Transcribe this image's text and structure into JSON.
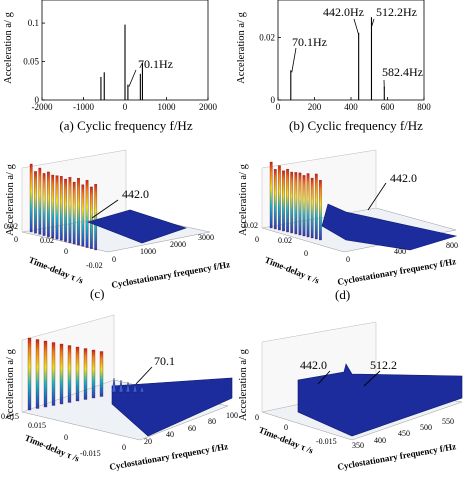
{
  "figure": {
    "top_ylabel": "Acceleration a/ g",
    "z_label": "Acceleration a/ g",
    "time_delay_label": "Time-delay  τ /s",
    "cyclo_label": "Cyclostationary frequency f/Hz"
  },
  "chart_data": [
    {
      "id": "a",
      "type": "bar",
      "caption": "(a)  Cyclic frequency f/Hz",
      "xlim": [
        -2000,
        2000
      ],
      "ylim": [
        0,
        0.13
      ],
      "xticks": [
        "-2000",
        "-1000",
        "0",
        "1000",
        "2000"
      ],
      "yticks": [
        "0",
        "0.05",
        "0.1"
      ],
      "ytick_values": [
        0,
        0.05,
        0.1
      ],
      "x": [
        -580,
        -500,
        0,
        70.1,
        370,
        420
      ],
      "values": [
        0.03,
        0.036,
        0.098,
        0.02,
        0.034,
        0.048
      ],
      "annotations": [
        {
          "text": "70.1Hz",
          "x": 70.1
        }
      ]
    },
    {
      "id": "b",
      "type": "bar",
      "caption": "(b)  Cyclic frequency f/Hz",
      "xlim": [
        0,
        800
      ],
      "ylim": [
        0,
        0.032
      ],
      "xticks": [
        "0",
        "200",
        "400",
        "600",
        "800"
      ],
      "yticks": [
        "0",
        "0.02"
      ],
      "ytick_values": [
        0,
        0.02
      ],
      "x": [
        70.1,
        442.0,
        512.2,
        582.4
      ],
      "values": [
        0.0095,
        0.0215,
        0.0265,
        0.0042
      ],
      "annotations": [
        {
          "text": "70.1Hz",
          "x": 70.1
        },
        {
          "text": "442.0Hz",
          "x": 442.0
        },
        {
          "text": "512.2Hz",
          "x": 512.2
        },
        {
          "text": "582.4Hz",
          "x": 582.4
        }
      ]
    },
    {
      "id": "c",
      "type": "surface",
      "caption": "(c)",
      "annotation": "442.0",
      "z_ticks": [
        "0.02",
        "0"
      ],
      "tau_ticks": [
        "0.02",
        "0",
        "-0.02"
      ],
      "f_ticks": [
        "0",
        "1000",
        "2000",
        "3000"
      ]
    },
    {
      "id": "d",
      "type": "surface",
      "caption": "(d)",
      "annotation": "442.0",
      "z_ticks": [
        "0.02",
        "0"
      ],
      "tau_ticks": [
        "0.02",
        "0"
      ],
      "f_ticks": [
        "0",
        "400",
        "800"
      ]
    },
    {
      "id": "e",
      "type": "surface",
      "annotation": "70.1",
      "z_ticks": [
        "0.015"
      ],
      "tau_ticks": [
        "0.015",
        "0",
        "-0.015"
      ],
      "f_ticks": [
        "0",
        "20",
        "40",
        "60",
        "80",
        "100"
      ]
    },
    {
      "id": "f",
      "type": "surface",
      "annotations": [
        "442.0",
        "512.2"
      ],
      "z_ticks": [
        "0"
      ],
      "tau_ticks": [
        "-0.015",
        "0"
      ],
      "f_ticks": [
        "350",
        "400",
        "450",
        "500",
        "550"
      ]
    }
  ]
}
